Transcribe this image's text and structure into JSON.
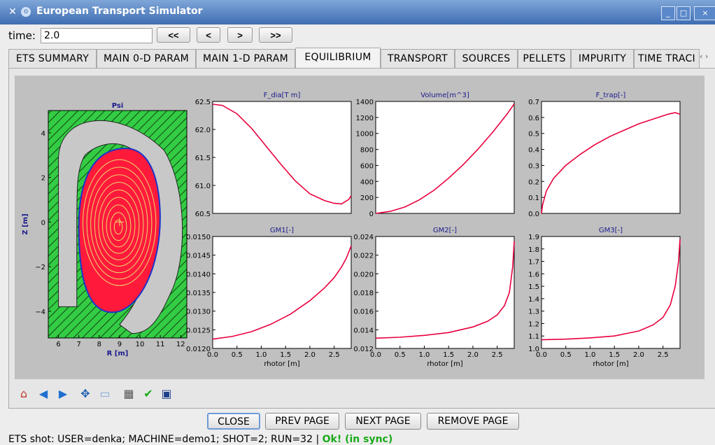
{
  "window": {
    "title": "European Transport Simulator",
    "controls": [
      "_",
      "□",
      "×"
    ]
  },
  "time": {
    "label": "time:",
    "value": "2.0",
    "buttons": [
      "<<",
      "<",
      ">",
      ">>"
    ]
  },
  "tabs": [
    {
      "label": "ETS SUMMARY",
      "active": false
    },
    {
      "label": "MAIN 0-D PARAM",
      "active": false
    },
    {
      "label": "MAIN 1-D PARAM",
      "active": false
    },
    {
      "label": "EQUILIBRIUM",
      "active": true
    },
    {
      "label": "TRANSPORT",
      "active": false
    },
    {
      "label": "SOURCES",
      "active": false
    },
    {
      "label": "PELLETS",
      "active": false
    },
    {
      "label": "IMPURITY",
      "active": false
    },
    {
      "label": "TIME TRACI",
      "active": false
    }
  ],
  "tab_scroll": "‹ ›",
  "colors": {
    "curve": "#e8003d",
    "plasma": "#ff1a3c",
    "flux_lines": "#e8d96a",
    "wall": "#c8c8c8",
    "vessel_hatch": "#33cc44",
    "separatrix": "#1a33cc",
    "title_text": "#1a1a8c"
  },
  "chart_data": [
    {
      "type": "heatmap",
      "title": "Psi",
      "xlabel": "R [m]",
      "ylabel": "Z [m]",
      "xlim": [
        5.5,
        12.3
      ],
      "ylim": [
        -5.2,
        5.0
      ],
      "xticks": [
        "6",
        "7",
        "8",
        "9",
        "10",
        "11",
        "12"
      ],
      "yticks": [
        "4",
        "2",
        "0",
        "−2",
        "−4"
      ]
    },
    {
      "type": "line",
      "title": "F_dia[T m]",
      "xlabel": "",
      "xlim": [
        0,
        2.85
      ],
      "ylim": [
        60.5,
        62.5
      ],
      "yticks": [
        "62.5",
        "62.0",
        "61.5",
        "61.0",
        "60.5"
      ],
      "xticks": [],
      "x": [
        0,
        0.2,
        0.5,
        0.8,
        1.1,
        1.4,
        1.7,
        2.0,
        2.3,
        2.5,
        2.65,
        2.8,
        2.85
      ],
      "y": [
        62.45,
        62.43,
        62.28,
        62.02,
        61.7,
        61.38,
        61.08,
        60.85,
        60.73,
        60.68,
        60.67,
        60.75,
        60.82
      ]
    },
    {
      "type": "line",
      "title": "Volume[m^3]",
      "xlabel": "",
      "xlim": [
        0,
        2.85
      ],
      "ylim": [
        0,
        1400
      ],
      "yticks": [
        "1400",
        "1200",
        "1000",
        "800",
        "600",
        "400",
        "200",
        "0"
      ],
      "xticks": [],
      "x": [
        0,
        0.3,
        0.6,
        0.9,
        1.2,
        1.5,
        1.8,
        2.1,
        2.4,
        2.7,
        2.85
      ],
      "y": [
        0,
        25,
        80,
        170,
        290,
        440,
        610,
        800,
        1010,
        1240,
        1370
      ]
    },
    {
      "type": "line",
      "title": "F_trap[-]",
      "xlabel": "",
      "xlim": [
        0,
        2.85
      ],
      "ylim": [
        0,
        0.7
      ],
      "yticks": [
        "0.7",
        "0.6",
        "0.5",
        "0.4",
        "0.3",
        "0.2",
        "0.1",
        "0.0"
      ],
      "xticks": [],
      "x": [
        0,
        0.02,
        0.1,
        0.25,
        0.5,
        0.8,
        1.1,
        1.4,
        1.7,
        2.0,
        2.3,
        2.6,
        2.75,
        2.85
      ],
      "y": [
        0.0,
        0.05,
        0.14,
        0.22,
        0.3,
        0.37,
        0.43,
        0.48,
        0.52,
        0.56,
        0.59,
        0.62,
        0.63,
        0.62
      ]
    },
    {
      "type": "line",
      "title": "GM1[-]",
      "xlabel": "rhotor [m]",
      "xlim": [
        0,
        2.85
      ],
      "ylim": [
        0.012,
        0.015
      ],
      "yticks": [
        "0.0150",
        "0.0145",
        "0.0140",
        "0.0135",
        "0.0130",
        "0.0125",
        "0.0120"
      ],
      "xticks": [
        "0.0",
        "0.5",
        "1.0",
        "1.5",
        "2.0",
        "2.5"
      ],
      "x": [
        0,
        0.4,
        0.8,
        1.2,
        1.6,
        2.0,
        2.3,
        2.5,
        2.65,
        2.75,
        2.85
      ],
      "y": [
        0.01225,
        0.01232,
        0.01245,
        0.01265,
        0.01292,
        0.01328,
        0.01362,
        0.0139,
        0.01418,
        0.01442,
        0.01475
      ]
    },
    {
      "type": "line",
      "title": "GM2[-]",
      "xlabel": "rhotor [m]",
      "xlim": [
        0,
        2.85
      ],
      "ylim": [
        0.012,
        0.024
      ],
      "yticks": [
        "0.024",
        "0.022",
        "0.020",
        "0.018",
        "0.016",
        "0.014",
        "0.012"
      ],
      "xticks": [
        "0.0",
        "0.5",
        "1.0",
        "1.5",
        "2.0",
        "2.5"
      ],
      "x": [
        0,
        0.5,
        1.0,
        1.5,
        2.0,
        2.3,
        2.5,
        2.65,
        2.75,
        2.82,
        2.85
      ],
      "y": [
        0.0131,
        0.0132,
        0.0134,
        0.0137,
        0.0143,
        0.0149,
        0.0156,
        0.0166,
        0.018,
        0.0208,
        0.0235
      ]
    },
    {
      "type": "line",
      "title": "GM3[-]",
      "xlabel": "rhotor [m]",
      "xlim": [
        0,
        2.85
      ],
      "ylim": [
        1.0,
        1.9
      ],
      "yticks": [
        "1.9",
        "1.8",
        "1.7",
        "1.6",
        "1.5",
        "1.4",
        "1.3",
        "1.2",
        "1.1",
        "1.0"
      ],
      "xticks": [
        "0.0",
        "0.5",
        "1.0",
        "1.5",
        "2.0",
        "2.5"
      ],
      "x": [
        0,
        0.5,
        1.0,
        1.5,
        2.0,
        2.3,
        2.5,
        2.65,
        2.75,
        2.82,
        2.85
      ],
      "y": [
        1.07,
        1.075,
        1.085,
        1.1,
        1.14,
        1.19,
        1.25,
        1.35,
        1.5,
        1.7,
        1.88
      ]
    }
  ],
  "plot_toolbar": {
    "icons": [
      "home-icon",
      "back-icon",
      "forward-icon",
      "pan-icon",
      "zoom-icon",
      "subplots-icon",
      "check-icon",
      "save-icon"
    ]
  },
  "buttons": {
    "close": "CLOSE",
    "prev_page": "PREV PAGE",
    "next_page": "NEXT PAGE",
    "remove_page": "REMOVE PAGE"
  },
  "status": {
    "text": "ETS shot: USER=denka; MACHINE=demo1; SHOT=2; RUN=32 |",
    "ok": "Ok! (in sync)"
  }
}
